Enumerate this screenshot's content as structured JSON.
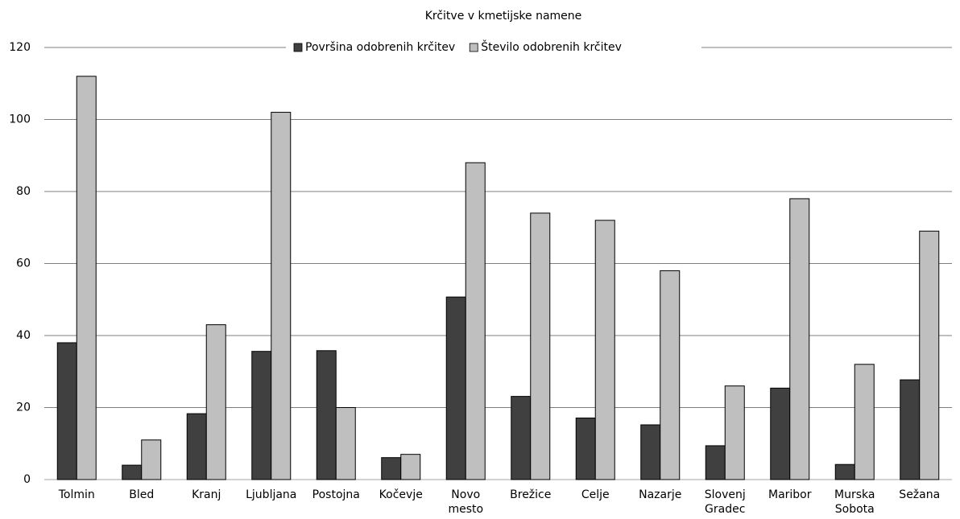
{
  "chart_data": {
    "type": "bar",
    "title": "Krčitve v kmetijske namene",
    "categories": [
      "Tolmin",
      "Bled",
      "Kranj",
      "Ljubljana",
      "Postojna",
      "Kočevje",
      "Novo mesto",
      "Brežice",
      "Celje",
      "Nazarje",
      "Slovenj Gradec",
      "Maribor",
      "Murska Sobota",
      "Sežana"
    ],
    "series": [
      {
        "name": "Površina odobrenih krčitev",
        "color": "#404040",
        "values": [
          38,
          4,
          18.3,
          35.6,
          35.8,
          6.1,
          50.7,
          23.1,
          17.1,
          15.2,
          9.4,
          25.4,
          4.2,
          27.7
        ]
      },
      {
        "name": "Število odobrenih krčitev",
        "color": "#bfbfbf",
        "values": [
          112,
          11,
          43,
          102,
          20,
          7,
          88,
          74,
          72,
          58,
          26,
          78,
          32,
          69
        ]
      }
    ],
    "ylim": [
      0,
      120
    ],
    "yticks": [
      0,
      20,
      40,
      60,
      80,
      100,
      120
    ],
    "grid": true,
    "legend": "top"
  }
}
